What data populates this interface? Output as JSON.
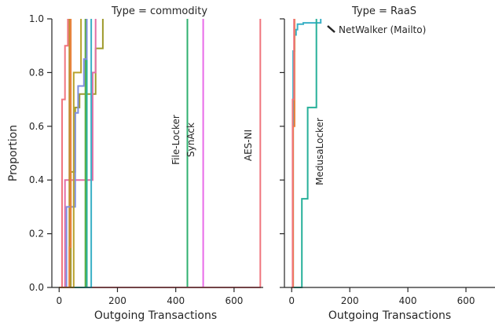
{
  "chart_data": [
    {
      "type": "line",
      "subtype": "step-ecdf",
      "title": "Type = commodity",
      "xlabel": "Outgoing Transactions",
      "ylabel": "Proportion",
      "xlim": [
        -25,
        700
      ],
      "ylim": [
        0,
        1.0
      ],
      "xticks": [
        0,
        200,
        400,
        600
      ],
      "yticks": [
        0.0,
        0.2,
        0.4,
        0.6,
        0.8,
        1.0
      ],
      "xtick_labels": [
        "0",
        "200",
        "400",
        "600"
      ],
      "ytick_labels": [
        "0.0",
        "0.2",
        "0.4",
        "0.6",
        "0.8",
        "1.0"
      ],
      "grid": false,
      "series": [
        {
          "name": "File-Locker",
          "color": "#2fb06f",
          "x": [
            0,
            440,
            440
          ],
          "y": [
            0,
            0,
            1.0
          ]
        },
        {
          "name": "SynAck",
          "color": "#e96be8",
          "x": [
            0,
            494,
            494
          ],
          "y": [
            0,
            0,
            1.0
          ]
        },
        {
          "name": "AES-NI",
          "color": "#f0757e",
          "x": [
            0,
            690,
            690
          ],
          "y": [
            0,
            0,
            1.0
          ]
        },
        {
          "color": "#9e9a2c",
          "x": [
            0,
            40,
            40,
            55,
            55,
            70,
            70,
            125,
            125,
            150,
            150
          ],
          "y": [
            0,
            0,
            0.43,
            0.43,
            0.67,
            0.67,
            0.72,
            0.72,
            0.89,
            0.89,
            1.0
          ]
        },
        {
          "color": "#e36fa6",
          "x": [
            0,
            20,
            20,
            115,
            115,
            125,
            125
          ],
          "y": [
            0,
            0,
            0.4,
            0.4,
            0.8,
            0.8,
            1.0
          ]
        },
        {
          "color": "#3ab0c6",
          "x": [
            0,
            110,
            110
          ],
          "y": [
            0,
            0,
            1.0
          ]
        },
        {
          "color": "#5fae3f",
          "x": [
            0,
            90,
            90
          ],
          "y": [
            0,
            0,
            1.0
          ]
        },
        {
          "color": "#c28a2e",
          "x": [
            0,
            35,
            35
          ],
          "y": [
            0,
            0,
            1.0
          ]
        },
        {
          "color": "#27b09a",
          "x": [
            0,
            95,
            95
          ],
          "y": [
            0,
            0,
            1.0
          ]
        },
        {
          "color": "#7e8ee0",
          "x": [
            0,
            25,
            25,
            55,
            55,
            65,
            65,
            85,
            85,
            95,
            95
          ],
          "y": [
            0,
            0,
            0.3,
            0.3,
            0.65,
            0.65,
            0.75,
            0.75,
            0.85,
            0.85,
            1.0
          ]
        },
        {
          "color": "#f0757e",
          "x": [
            0,
            10,
            10,
            20,
            20,
            30,
            30
          ],
          "y": [
            0,
            0,
            0.7,
            0.7,
            0.9,
            0.9,
            1.0
          ]
        },
        {
          "color": "#b9a22b",
          "x": [
            0,
            50,
            50,
            75,
            75
          ],
          "y": [
            0,
            0,
            0.8,
            0.8,
            1.0
          ]
        },
        {
          "color": "#e8823a",
          "x": [
            0,
            35,
            35,
            40,
            40
          ],
          "y": [
            0,
            0,
            0.15,
            0.15,
            1.0
          ]
        }
      ],
      "annotations": [
        "File-Locker",
        "SynAck",
        "AES-NI"
      ]
    },
    {
      "type": "line",
      "subtype": "step-ecdf",
      "title": "Type = RaaS",
      "xlabel": "Outgoing Transactions",
      "xlim": [
        -25,
        700
      ],
      "ylim": [
        0,
        1.0
      ],
      "xticks": [
        0,
        200,
        400,
        600
      ],
      "xtick_labels": [
        "0",
        "200",
        "400",
        "600"
      ],
      "grid": false,
      "series": [
        {
          "name": "NetWalker (Mailto)",
          "color": "#3ab0c6",
          "x": [
            0,
            5,
            5,
            10,
            10,
            15,
            15,
            20,
            20,
            40,
            40,
            100,
            100
          ],
          "y": [
            0,
            0,
            0.88,
            0.88,
            0.94,
            0.94,
            0.96,
            0.96,
            0.98,
            0.98,
            0.985,
            0.985,
            1.0
          ]
        },
        {
          "name": "MedusaLocker",
          "color": "#27b09a",
          "x": [
            0,
            35,
            35,
            55,
            55,
            85,
            85
          ],
          "y": [
            0,
            0,
            0.33,
            0.33,
            0.67,
            0.67,
            1.0
          ]
        },
        {
          "color": "#e8823a",
          "x": [
            0,
            5,
            5,
            10,
            10
          ],
          "y": [
            0,
            0,
            0.6,
            0.6,
            1.0
          ]
        },
        {
          "color": "#f0757e",
          "x": [
            0,
            3,
            3,
            8,
            8
          ],
          "y": [
            0,
            0,
            0.7,
            0.7,
            1.0
          ]
        }
      ],
      "annotations": [
        "NetWalker (Mailto)",
        "MedusaLocker"
      ]
    }
  ]
}
